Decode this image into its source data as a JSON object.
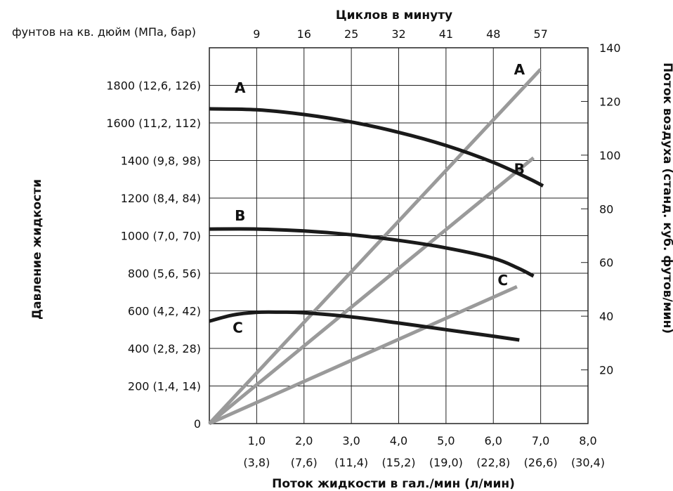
{
  "chart_data": {
    "type": "line",
    "title": "Циклов в минуту",
    "xlabel": "Поток жидкости в гал./мин (л/мин)",
    "ylabel": "Давление жидкости",
    "ylabel_right": "Поток воздуха (станд. куб. футов/мин)",
    "y_unit_label": "фунтов на кв. дюйм (МПа, бар)",
    "xlim": [
      0,
      8
    ],
    "ylim": [
      0,
      2000
    ],
    "y2lim": [
      0,
      140
    ],
    "grid": true,
    "x_ticks": [
      {
        "value": 1,
        "label": "1,0",
        "sub": "(3,8)"
      },
      {
        "value": 2,
        "label": "2,0",
        "sub": "(7,6)"
      },
      {
        "value": 3,
        "label": "3,0",
        "sub": "(11,4)"
      },
      {
        "value": 4,
        "label": "4,0",
        "sub": "(15,2)"
      },
      {
        "value": 5,
        "label": "5,0",
        "sub": "(19,0)"
      },
      {
        "value": 6,
        "label": "6,0",
        "sub": "(22,8)"
      },
      {
        "value": 7,
        "label": "7,0",
        "sub": "(26,6)"
      },
      {
        "value": 8,
        "label": "8,0",
        "sub": "(30,4)"
      }
    ],
    "top_ticks": [
      {
        "value": 1,
        "label": "9"
      },
      {
        "value": 2,
        "label": "16"
      },
      {
        "value": 3,
        "label": "25"
      },
      {
        "value": 4,
        "label": "32"
      },
      {
        "value": 5,
        "label": "41"
      },
      {
        "value": 6,
        "label": "48"
      },
      {
        "value": 7,
        "label": "57"
      }
    ],
    "y_ticks": [
      {
        "value": 0,
        "label": "0"
      },
      {
        "value": 200,
        "label": "200 (1,4, 14)"
      },
      {
        "value": 400,
        "label": "400 (2,8, 28)"
      },
      {
        "value": 600,
        "label": "600 (4,2, 42)"
      },
      {
        "value": 800,
        "label": "800 (5,6, 56)"
      },
      {
        "value": 1000,
        "label": "1000 (7,0, 70)"
      },
      {
        "value": 1200,
        "label": "1200 (8,4, 84)"
      },
      {
        "value": 1400,
        "label": "1400 (9,8, 98)"
      },
      {
        "value": 1600,
        "label": "1600 (11,2, 112)"
      },
      {
        "value": 1800,
        "label": "1800 (12,6, 126)"
      }
    ],
    "y2_ticks": [
      {
        "value": 20,
        "label": "20"
      },
      {
        "value": 40,
        "label": "40"
      },
      {
        "value": 60,
        "label": "60"
      },
      {
        "value": 80,
        "label": "80"
      },
      {
        "value": 100,
        "label": "100"
      },
      {
        "value": 120,
        "label": "120"
      },
      {
        "value": 140,
        "label": "140"
      }
    ],
    "pressure_series": [
      {
        "name": "A",
        "color": "#1a1a1a",
        "label_at": [
          0.65,
          1760
        ],
        "points": [
          [
            0,
            1675
          ],
          [
            1,
            1670
          ],
          [
            2,
            1645
          ],
          [
            3,
            1605
          ],
          [
            4,
            1550
          ],
          [
            5,
            1480
          ],
          [
            6,
            1390
          ],
          [
            6.7,
            1310
          ],
          [
            7.05,
            1265
          ]
        ]
      },
      {
        "name": "B",
        "color": "#1a1a1a",
        "label_at": [
          0.65,
          1080
        ],
        "points": [
          [
            0,
            1035
          ],
          [
            1,
            1035
          ],
          [
            2,
            1025
          ],
          [
            3,
            1005
          ],
          [
            4,
            975
          ],
          [
            5,
            935
          ],
          [
            6,
            880
          ],
          [
            6.5,
            830
          ],
          [
            6.85,
            785
          ]
        ]
      },
      {
        "name": "C",
        "color": "#1a1a1a",
        "label_at": [
          0.6,
          485
        ],
        "points": [
          [
            0,
            545
          ],
          [
            0.5,
            578
          ],
          [
            1,
            592
          ],
          [
            1.5,
            593
          ],
          [
            2,
            590
          ],
          [
            3,
            568
          ],
          [
            4,
            535
          ],
          [
            5,
            500
          ],
          [
            6,
            465
          ],
          [
            6.55,
            445
          ]
        ]
      }
    ],
    "air_series": [
      {
        "name": "A",
        "color": "#9a9a9a",
        "label_at": [
          6.55,
          130
        ],
        "points": [
          [
            0,
            0
          ],
          [
            7.0,
            132
          ]
        ]
      },
      {
        "name": "B",
        "color": "#9a9a9a",
        "label_at": [
          6.55,
          93
        ],
        "points": [
          [
            0,
            0
          ],
          [
            6.85,
            99
          ]
        ]
      },
      {
        "name": "C",
        "color": "#9a9a9a",
        "label_at": [
          6.2,
          51.5
        ],
        "points": [
          [
            0,
            0
          ],
          [
            6.5,
            51
          ]
        ]
      }
    ]
  }
}
